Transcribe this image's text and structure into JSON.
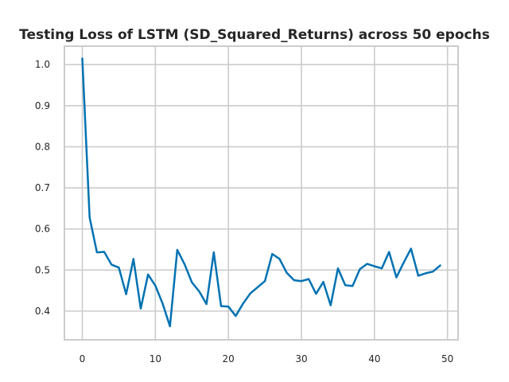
{
  "chart_data": {
    "type": "line",
    "title": "Testing Loss of LSTM (SD_Squared_Returns) across 50 epochs",
    "xlabel": "",
    "ylabel": "",
    "xlim": [
      -2.45,
      51.45
    ],
    "ylim": [
      0.33,
      1.045
    ],
    "xticks": [
      0,
      10,
      20,
      30,
      40,
      50
    ],
    "yticks": [
      0.4,
      0.5,
      0.6,
      0.7,
      0.8,
      0.9,
      1.0
    ],
    "ytick_labels": [
      "0.4",
      "0.5",
      "0.6",
      "0.7",
      "0.8",
      "0.9",
      "1.0"
    ],
    "grid": true,
    "series": [
      {
        "name": "",
        "color": "#0072b2",
        "x": [
          0,
          1,
          2,
          3,
          4,
          5,
          6,
          7,
          8,
          9,
          10,
          11,
          12,
          13,
          14,
          15,
          16,
          17,
          18,
          19,
          20,
          21,
          22,
          23,
          24,
          25,
          26,
          27,
          28,
          29,
          30,
          31,
          32,
          33,
          34,
          35,
          36,
          37,
          38,
          39,
          40,
          41,
          42,
          43,
          44,
          45,
          46,
          47,
          48,
          49
        ],
        "values": [
          1.015,
          0.628,
          0.543,
          0.544,
          0.513,
          0.506,
          0.441,
          0.527,
          0.406,
          0.489,
          0.462,
          0.418,
          0.363,
          0.549,
          0.514,
          0.47,
          0.448,
          0.417,
          0.543,
          0.412,
          0.411,
          0.388,
          0.418,
          0.443,
          0.458,
          0.473,
          0.539,
          0.527,
          0.493,
          0.475,
          0.473,
          0.478,
          0.442,
          0.471,
          0.414,
          0.504,
          0.463,
          0.461,
          0.502,
          0.515,
          0.509,
          0.504,
          0.544,
          0.482,
          0.518,
          0.552,
          0.486,
          0.492,
          0.496,
          0.511
        ]
      }
    ]
  }
}
